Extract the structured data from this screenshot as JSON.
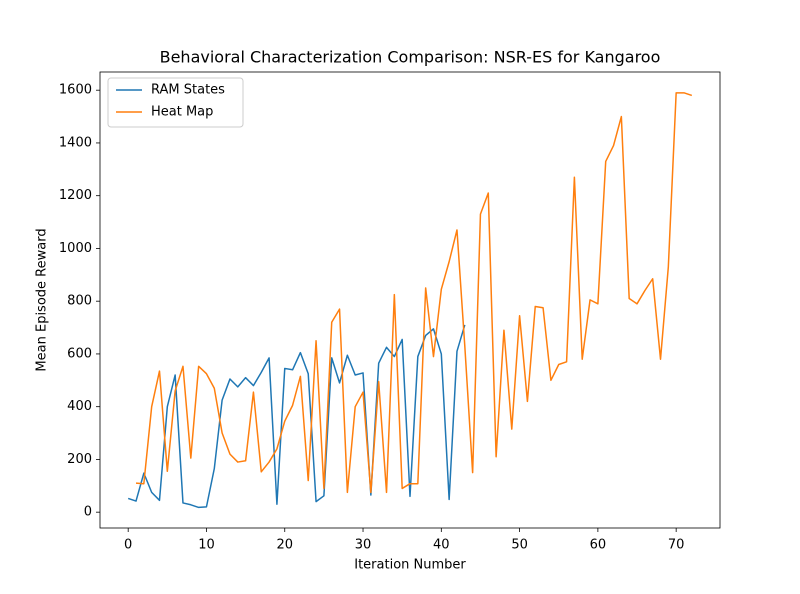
{
  "chart_data": {
    "type": "line",
    "title": "Behavioral Characterization Comparison: NSR-ES for Kangaroo",
    "xlabel": "Iteration Number",
    "ylabel": "Mean Episode Reward",
    "xlim": [
      -3.6,
      75.6
    ],
    "ylim": [
      -60,
      1669
    ],
    "xticks": [
      0,
      10,
      20,
      30,
      40,
      50,
      60,
      70
    ],
    "yticks": [
      0,
      200,
      400,
      600,
      800,
      1000,
      1200,
      1400,
      1600
    ],
    "legend": "upper left",
    "series": [
      {
        "name": "RAM States",
        "color": "#1f77b4",
        "x": [
          0,
          1,
          2,
          3,
          4,
          5,
          6,
          7,
          8,
          9,
          10,
          11,
          12,
          13,
          14,
          15,
          16,
          17,
          18,
          19,
          20,
          21,
          22,
          23,
          24,
          25,
          26,
          27,
          28,
          29,
          30,
          31,
          32,
          33,
          34,
          35,
          36,
          37,
          38,
          39,
          40,
          41,
          42,
          43
        ],
        "values": [
          52,
          42,
          148,
          75,
          45,
          400,
          520,
          35,
          28,
          18,
          20,
          165,
          425,
          505,
          475,
          510,
          480,
          530,
          585,
          30,
          545,
          540,
          605,
          525,
          40,
          62,
          585,
          490,
          595,
          520,
          528,
          65,
          565,
          625,
          590,
          655,
          60,
          590,
          670,
          695,
          600,
          48,
          610,
          710
        ]
      },
      {
        "name": "Heat Map",
        "color": "#ff7f0e",
        "x": [
          1,
          2,
          3,
          4,
          5,
          6,
          7,
          8,
          9,
          10,
          11,
          12,
          13,
          14,
          15,
          16,
          17,
          18,
          19,
          20,
          21,
          22,
          23,
          24,
          25,
          26,
          27,
          28,
          29,
          30,
          31,
          32,
          33,
          34,
          35,
          36,
          37,
          38,
          39,
          40,
          41,
          42,
          43,
          44,
          45,
          46,
          47,
          48,
          49,
          50,
          51,
          52,
          53,
          54,
          55,
          56,
          57,
          58,
          59,
          60,
          61,
          62,
          63,
          64,
          65,
          66,
          67,
          68,
          69,
          70,
          71,
          72
        ],
        "values": [
          110,
          108,
          400,
          535,
          155,
          460,
          553,
          205,
          553,
          525,
          470,
          300,
          220,
          190,
          195,
          455,
          153,
          190,
          240,
          345,
          405,
          515,
          120,
          650,
          90,
          720,
          770,
          75,
          400,
          455,
          75,
          495,
          75,
          825,
          90,
          108,
          108,
          850,
          590,
          845,
          950,
          1070,
          630,
          150,
          1130,
          1210,
          210,
          690,
          315,
          745,
          420,
          780,
          775,
          500,
          560,
          570,
          1270,
          580,
          805,
          790,
          1330,
          1390,
          1500,
          810,
          790,
          840,
          885,
          580,
          930,
          1590,
          1590,
          1580
        ]
      }
    ]
  }
}
